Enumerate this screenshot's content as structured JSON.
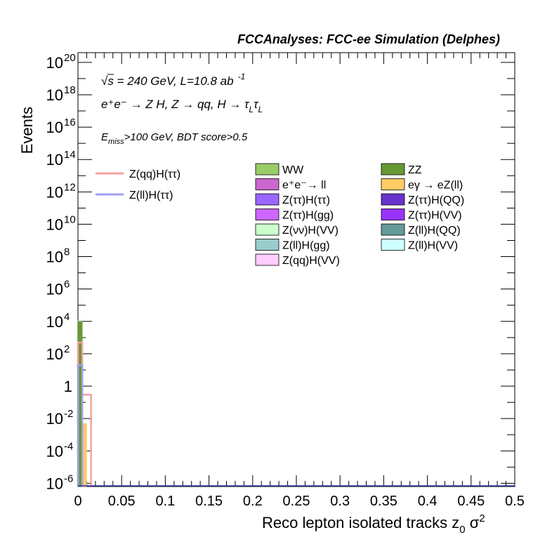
{
  "chart_data": {
    "type": "bar",
    "title": "FCCAnalyses: FCC-ee Simulation (Delphes)",
    "xlabel": "Reco lepton isolated tracks z",
    "xlabel_sub": "0",
    "xlabel_tail": " σ",
    "xlabel_sup": "2",
    "ylabel": "Events",
    "xlim": [
      0,
      0.5
    ],
    "ylim_log10": [
      -6.2,
      20.6
    ],
    "y_scale": "log",
    "grid": false,
    "x_ticks": [
      "0",
      "0.05",
      "0.1",
      "0.15",
      "0.2",
      "0.25",
      "0.3",
      "0.35",
      "0.4",
      "0.45",
      "0.5"
    ],
    "y_ticks": [
      {
        "base": "10",
        "exp": "-6"
      },
      {
        "base": "10",
        "exp": "-4"
      },
      {
        "base": "10",
        "exp": "-2"
      },
      {
        "base": "1",
        "exp": ""
      },
      {
        "base": "10",
        "exp": "2"
      },
      {
        "base": "10",
        "exp": "4"
      },
      {
        "base": "10",
        "exp": "6"
      },
      {
        "base": "10",
        "exp": "8"
      },
      {
        "base": "10",
        "exp": "10"
      },
      {
        "base": "10",
        "exp": "12"
      },
      {
        "base": "10",
        "exp": "14"
      },
      {
        "base": "10",
        "exp": "16"
      },
      {
        "base": "10",
        "exp": "18"
      },
      {
        "base": "10",
        "exp": "20"
      }
    ],
    "annotations": {
      "energy": "√s = 240 GeV, L=10.8 ab",
      "energy_sup": "-1",
      "process": "e⁺e⁻ → Z H, Z → qq, H → τ",
      "process_sub1": "L",
      "process_tau2": "τ",
      "process_sub2": "L",
      "cut_e": "E",
      "cut_sub": "miss",
      "cut_rest": ">100 GeV, BDT score>0.5"
    },
    "signal_series": [
      {
        "name": "Z(qq)H(ττ)",
        "color": "#f4a0a0",
        "edges_x": [
          0.0,
          0.005,
          0.01,
          0.015
        ],
        "values": [
          500,
          0.3,
          0.3
        ]
      },
      {
        "name": "Z(ll)H(ττ)",
        "color": "#a0a0f4",
        "edges_x": [
          0.0,
          0.005
        ],
        "values": [
          20
        ]
      }
    ],
    "stack_bins_x": [
      0.0,
      0.005,
      0.01
    ],
    "background_series": [
      {
        "name": "WW",
        "color": "#99cc66",
        "values": [
          0,
          0
        ]
      },
      {
        "name": "ZZ",
        "color": "#669933",
        "values": [
          10000,
          0
        ]
      },
      {
        "name": "e⁺e⁻→ ll",
        "color": "#cc66cc",
        "values": [
          0,
          0
        ]
      },
      {
        "name": "eγ → eZ(ll)",
        "color": "#ffcc66",
        "values": [
          800,
          0.005
        ]
      },
      {
        "name": "Z(ττ)H(ττ)",
        "color": "#9966ff",
        "values": [
          150,
          0
        ]
      },
      {
        "name": "Z(ττ)H(QQ)",
        "color": "#6633cc",
        "values": [
          0,
          0
        ]
      },
      {
        "name": "Z(ττ)H(gg)",
        "color": "#cc66ff",
        "values": [
          0,
          0
        ]
      },
      {
        "name": "Z(ττ)H(VV)",
        "color": "#9933ff",
        "values": [
          0,
          0
        ]
      },
      {
        "name": "Z(νν)H(VV)",
        "color": "#ccffcc",
        "values": [
          0,
          0
        ]
      },
      {
        "name": "Z(ll)H(QQ)",
        "color": "#669999",
        "values": [
          3,
          0
        ]
      },
      {
        "name": "Z(ll)H(gg)",
        "color": "#99cccc",
        "values": [
          0.5,
          0
        ]
      },
      {
        "name": "Z(ll)H(VV)",
        "color": "#ccffff",
        "values": [
          0,
          0
        ]
      },
      {
        "name": "Z(qq)H(VV)",
        "color": "#ffccff",
        "values": [
          0,
          0
        ]
      }
    ]
  }
}
